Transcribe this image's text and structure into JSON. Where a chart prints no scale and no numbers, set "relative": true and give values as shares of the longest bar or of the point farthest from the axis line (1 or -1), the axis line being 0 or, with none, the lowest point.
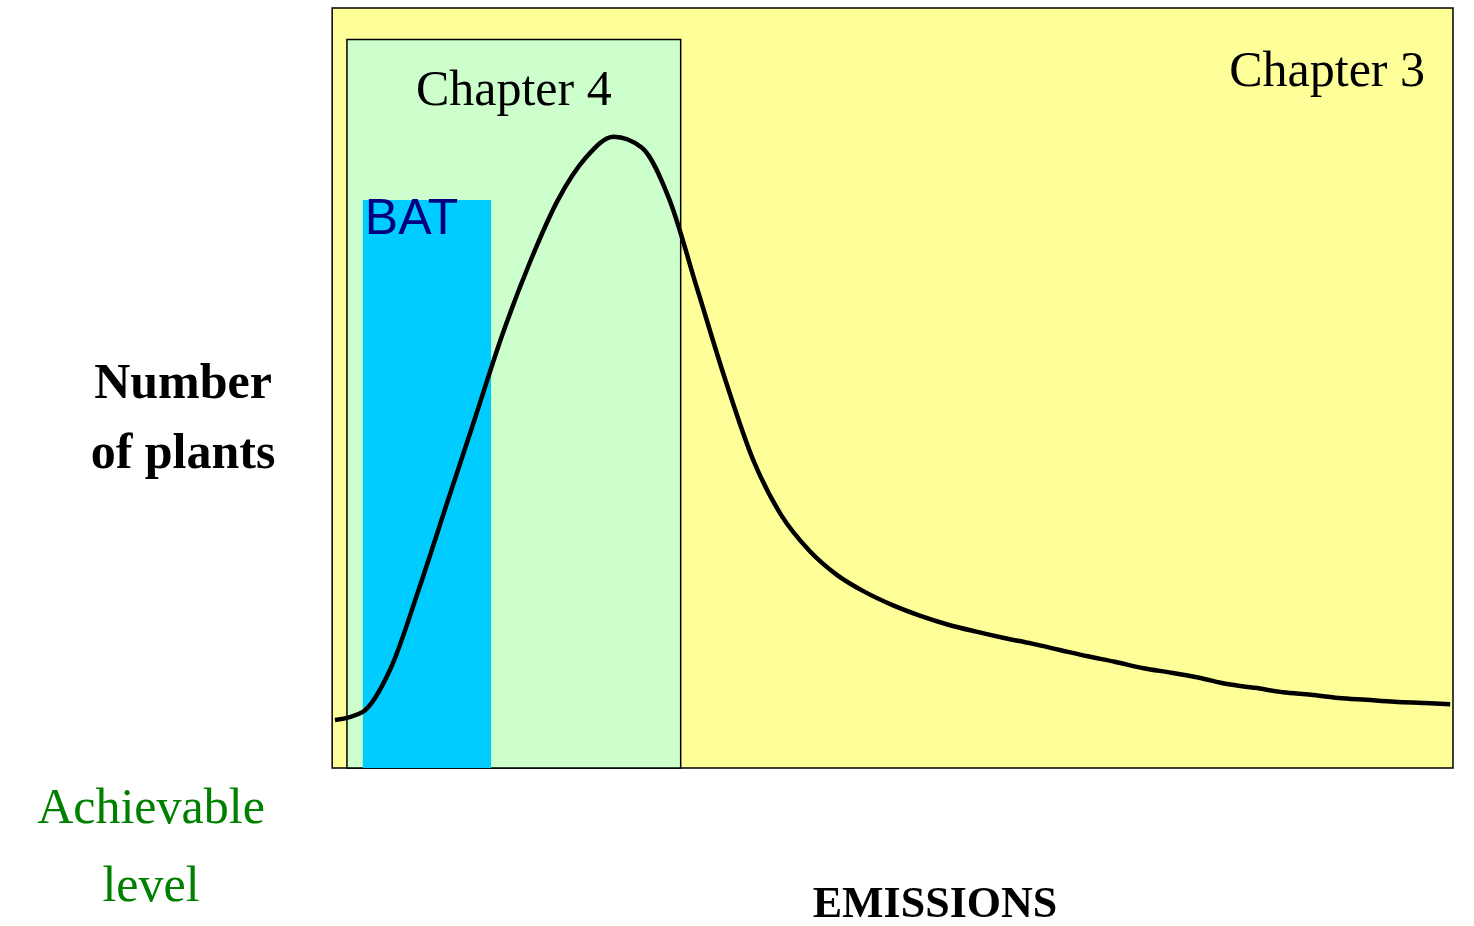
{
  "chart_data": {
    "type": "line",
    "relative": true,
    "xlabel": "EMISSIONS",
    "ylabel": "Number of plants",
    "categories": [
      null,
      null,
      null,
      null,
      null,
      null,
      null,
      null,
      null,
      null,
      null,
      null,
      null,
      null,
      null,
      null,
      null,
      null,
      null,
      null,
      null,
      null,
      null,
      null,
      null,
      null,
      null,
      null,
      null,
      null,
      null,
      null,
      null,
      null,
      null,
      null,
      null,
      null,
      null,
      null,
      null
    ],
    "series": [
      {
        "color": "#000000",
        "values": [
          0.076,
          0.089,
          0.158,
          0.282,
          0.417,
          0.551,
          0.686,
          0.802,
          0.9,
          0.967,
          1,
          0.983,
          0.9,
          0.758,
          0.615,
          0.488,
          0.401,
          0.345,
          0.306,
          0.279,
          0.258,
          0.241,
          0.227,
          0.216,
          0.206,
          0.197,
          0.187,
          0.177,
          0.168,
          0.158,
          0.151,
          0.143,
          0.133,
          0.127,
          0.12,
          0.116,
          0.111,
          0.108,
          0.105,
          0.103,
          0.101
        ]
      }
    ],
    "annotations": [
      "Chapter 3",
      "Chapter 4",
      "BAT",
      "Achievable level"
    ],
    "line_style": "solid"
  }
}
